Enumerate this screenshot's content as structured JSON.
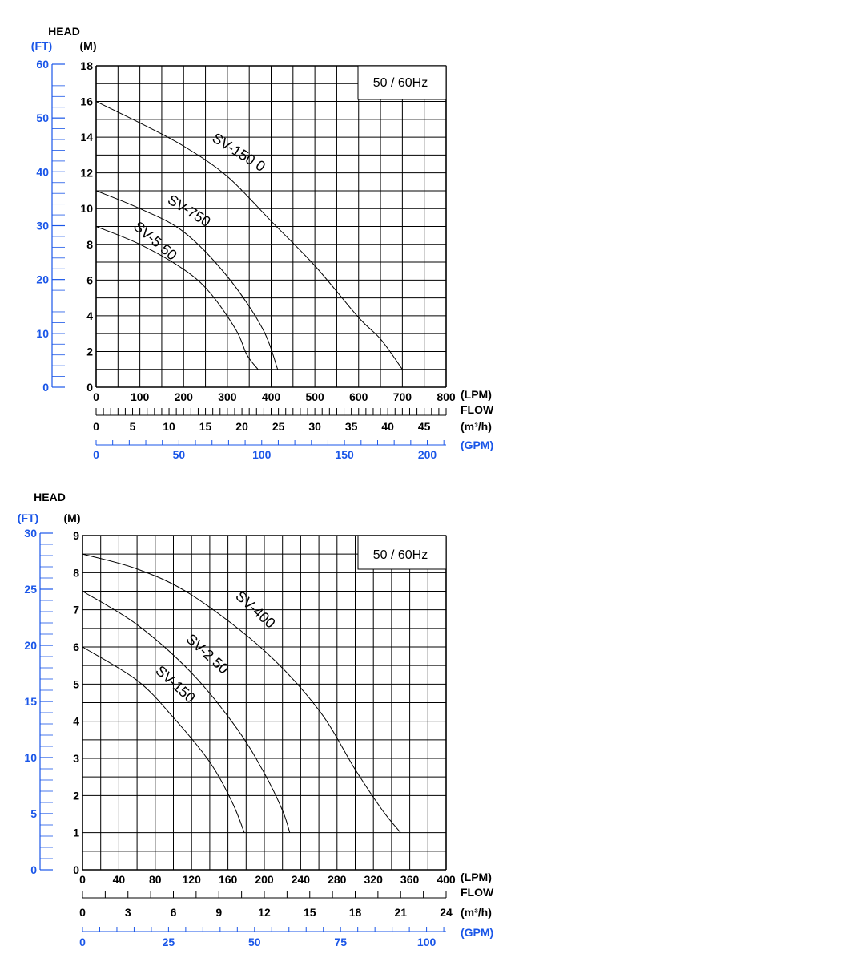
{
  "chart_data": [
    {
      "type": "line",
      "frequency_label": "50 / 60Hz",
      "head_label": "HEAD",
      "ft_unit": "(FT)",
      "m_unit": "(M)",
      "lpm_unit": "(LPM)",
      "flow_label": "FLOW",
      "m3h_unit": "(m³/h)",
      "gpm_unit": "(GPM)",
      "xlim": [
        0,
        800
      ],
      "ylim": [
        0,
        18
      ],
      "x_ticks_lpm": [
        "0",
        "100",
        "200",
        "300",
        "400",
        "500",
        "600",
        "700",
        "800"
      ],
      "x_ticks_m3h": [
        "0",
        "5",
        "10",
        "15",
        "20",
        "25",
        "30",
        "35",
        "40",
        "45"
      ],
      "x_ticks_gpm": [
        "0",
        "50",
        "100",
        "150",
        "200"
      ],
      "y_ticks_m": [
        "0",
        "2",
        "4",
        "6",
        "8",
        "10",
        "12",
        "14",
        "16",
        "18"
      ],
      "y_ticks_ft": [
        "0",
        "10",
        "20",
        "30",
        "40",
        "50",
        "60"
      ],
      "series": [
        {
          "name": "SV-150 0",
          "label_text": "SV-150 0",
          "x": [
            0,
            100,
            200,
            300,
            400,
            500,
            600,
            650,
            700
          ],
          "y": [
            16,
            14.8,
            13.5,
            11.8,
            9.3,
            6.8,
            3.9,
            2.7,
            1
          ]
        },
        {
          "name": "SV-750",
          "label_text": "SV-750",
          "x": [
            0,
            100,
            200,
            300,
            380,
            415
          ],
          "y": [
            11,
            10,
            8.7,
            6.2,
            3.3,
            1
          ]
        },
        {
          "name": "SV-550",
          "label_text": "SV-5 50",
          "x": [
            0,
            100,
            200,
            260,
            320,
            345,
            370
          ],
          "y": [
            9,
            8,
            6.6,
            5.3,
            3.2,
            1.8,
            1
          ]
        }
      ]
    },
    {
      "type": "line",
      "frequency_label": "50 / 60Hz",
      "head_label": "HEAD",
      "ft_unit": "(FT)",
      "m_unit": "(M)",
      "lpm_unit": "(LPM)",
      "flow_label": "FLOW",
      "m3h_unit": "(m³/h)",
      "gpm_unit": "(GPM)",
      "xlim": [
        0,
        400
      ],
      "ylim": [
        0,
        9
      ],
      "x_ticks_lpm": [
        "0",
        "40",
        "80",
        "120",
        "160",
        "200",
        "240",
        "280",
        "320",
        "360",
        "400"
      ],
      "x_ticks_m3h": [
        "0",
        "3",
        "6",
        "9",
        "12",
        "15",
        "18",
        "21",
        "24"
      ],
      "x_ticks_gpm": [
        "0",
        "25",
        "50",
        "75",
        "100"
      ],
      "y_ticks_m": [
        "0",
        "1",
        "2",
        "3",
        "4",
        "5",
        "6",
        "7",
        "8",
        "9"
      ],
      "y_ticks_ft": [
        "0",
        "5",
        "10",
        "15",
        "20",
        "25",
        "30"
      ],
      "series": [
        {
          "name": "SV-400",
          "label_text": "SV-400",
          "x": [
            0,
            60,
            120,
            200,
            260,
            300,
            330,
            350
          ],
          "y": [
            8.5,
            8.1,
            7.4,
            5.9,
            4.3,
            2.7,
            1.6,
            1
          ]
        },
        {
          "name": "SV-250",
          "label_text": "SV-2 50",
          "x": [
            0,
            60,
            120,
            170,
            200,
            220,
            228
          ],
          "y": [
            7.5,
            6.6,
            5.3,
            3.8,
            2.6,
            1.6,
            1
          ]
        },
        {
          "name": "SV-150",
          "label_text": "SV-150",
          "x": [
            0,
            60,
            100,
            140,
            165,
            178
          ],
          "y": [
            6,
            5.1,
            4.1,
            2.9,
            1.8,
            1
          ]
        }
      ]
    }
  ]
}
